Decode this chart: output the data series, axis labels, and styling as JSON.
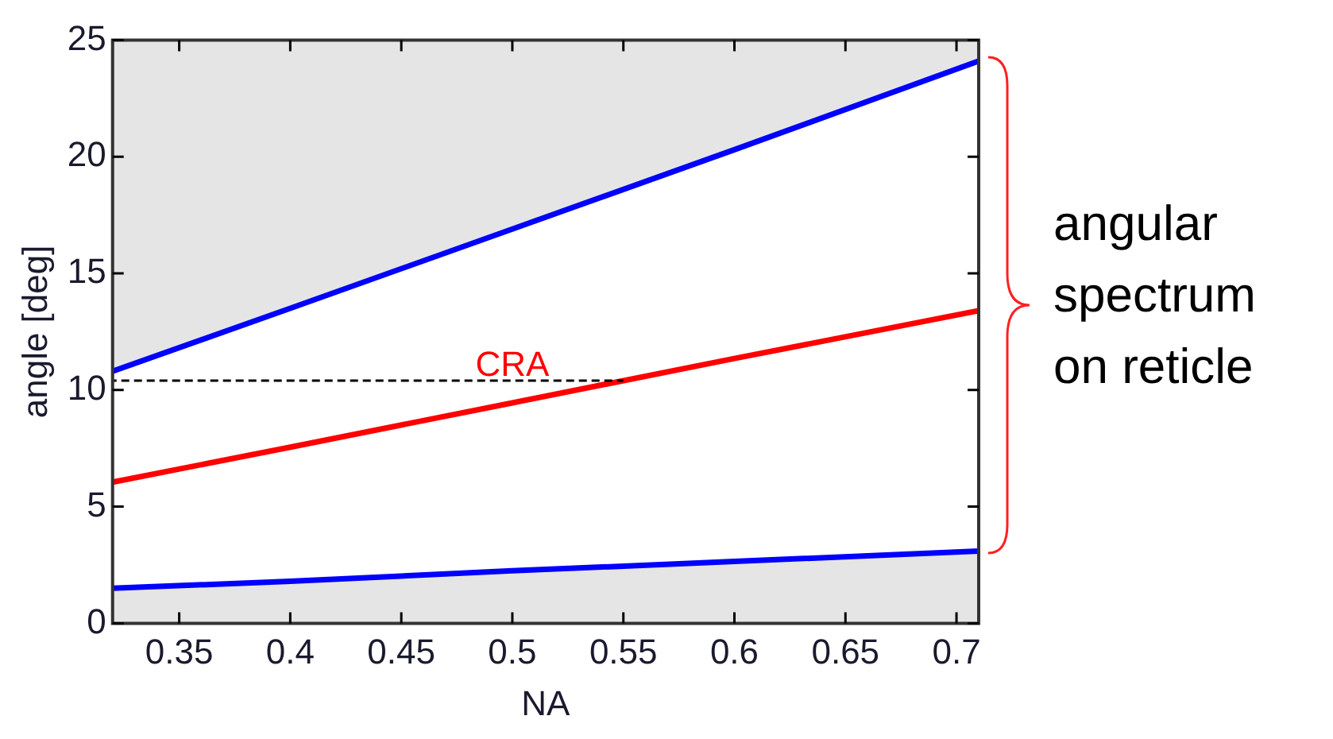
{
  "chart_data": {
    "type": "line",
    "xlabel": "NA",
    "ylabel": "angle [deg]",
    "x": [
      0.32,
      0.4,
      0.5,
      0.6,
      0.71
    ],
    "series": [
      {
        "color": "#0000ff",
        "values": [
          10.8,
          13.5,
          16.9,
          20.3,
          24.1
        ]
      },
      {
        "color": "#ff0000",
        "values": [
          6.05,
          7.55,
          9.45,
          11.35,
          13.4
        ],
        "lower": [
          1.5,
          1.8,
          2.25,
          2.65,
          3.1
        ],
        "upper": [
          10.8,
          13.5,
          16.9,
          20.3,
          24.1
        ]
      },
      {
        "color": "#0000ff",
        "values": [
          1.5,
          1.8,
          2.25,
          2.65,
          3.1
        ]
      },
      {
        "color": "#000000",
        "x": [
          0.32,
          0.55
        ],
        "values": [
          10.4,
          10.4
        ],
        "line_style": "dashed"
      }
    ],
    "xlim": [
      0.32,
      0.71
    ],
    "ylim": [
      0,
      25
    ],
    "xticks": [
      0.35,
      0.4,
      0.45,
      0.5,
      0.55,
      0.6,
      0.65,
      0.7
    ],
    "yticks": [
      0,
      5,
      10,
      15,
      20,
      25
    ],
    "legend": false,
    "marker": "none",
    "line_style": "solid",
    "annotations": [
      {
        "text": "CRA",
        "x": 0.5,
        "y": 10.4
      },
      "angular spectrum on reticle"
    ]
  }
}
